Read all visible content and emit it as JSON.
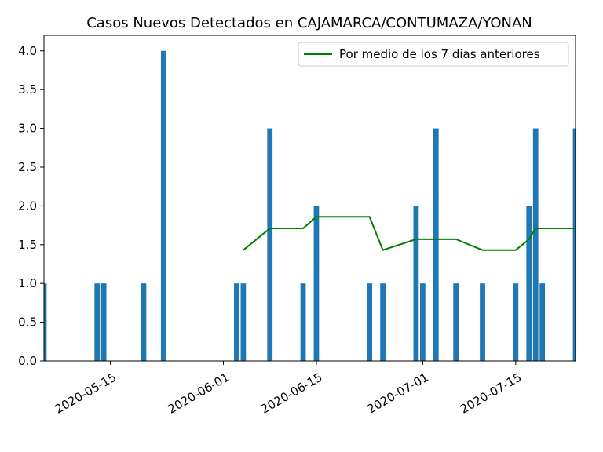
{
  "chart_data": {
    "type": "bar",
    "title": "Casos Nuevos Detectados en CAJAMARCA/CONTUMAZA/YONAN",
    "xlabel": "",
    "ylabel": "",
    "ylim": [
      0,
      4.2
    ],
    "y_ticks": [
      "0.0",
      "0.5",
      "1.0",
      "1.5",
      "2.0",
      "2.5",
      "3.0",
      "3.5",
      "4.0"
    ],
    "x_ticks": [
      "2020-05-15",
      "2020-06-01",
      "2020-06-15",
      "2020-07-01",
      "2020-07-15"
    ],
    "xlim": [
      "2020-05-05",
      "2020-07-24"
    ],
    "grid": false,
    "legend_position": "top-right",
    "bar_color": "#1f77b4",
    "line_color": "#008000",
    "series": [
      {
        "type": "bar",
        "dates": [
          "2020-05-05",
          "2020-05-13",
          "2020-05-14",
          "2020-05-20",
          "2020-05-23",
          "2020-06-03",
          "2020-06-04",
          "2020-06-08",
          "2020-06-13",
          "2020-06-15",
          "2020-06-23",
          "2020-06-25",
          "2020-06-30",
          "2020-07-01",
          "2020-07-03",
          "2020-07-06",
          "2020-07-10",
          "2020-07-15",
          "2020-07-17",
          "2020-07-18",
          "2020-07-19",
          "2020-07-24"
        ],
        "values": [
          1,
          1,
          1,
          1,
          4,
          1,
          1,
          3,
          1,
          2,
          1,
          1,
          2,
          1,
          3,
          1,
          1,
          1,
          2,
          3,
          1,
          3
        ]
      },
      {
        "type": "line",
        "name": "Por medio de los 7 dias anteriores",
        "dates": [
          "2020-06-04",
          "2020-06-08",
          "2020-06-13",
          "2020-06-15",
          "2020-06-23",
          "2020-06-25",
          "2020-06-30",
          "2020-07-01",
          "2020-07-03",
          "2020-07-06",
          "2020-07-10",
          "2020-07-15",
          "2020-07-17",
          "2020-07-18",
          "2020-07-19",
          "2020-07-24"
        ],
        "values": [
          1.43,
          1.71,
          1.71,
          1.86,
          1.86,
          1.43,
          1.57,
          1.57,
          1.57,
          1.57,
          1.43,
          1.43,
          1.57,
          1.71,
          1.71,
          1.71
        ]
      }
    ]
  }
}
